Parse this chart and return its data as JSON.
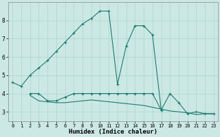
{
  "xlabel": "Humidex (Indice chaleur)",
  "bg_color": "#cce8e4",
  "line_color": "#1a7a6e",
  "grid_color": "#aad4cc",
  "xlim": [
    -0.5,
    23.5
  ],
  "ylim": [
    2.5,
    9.0
  ],
  "xticks": [
    0,
    1,
    2,
    3,
    4,
    5,
    6,
    7,
    8,
    9,
    10,
    11,
    12,
    13,
    14,
    15,
    16,
    17,
    18,
    19,
    20,
    21,
    22,
    23
  ],
  "yticks": [
    3,
    4,
    5,
    6,
    7,
    8
  ],
  "curve1_x": [
    0,
    1,
    2,
    3,
    4,
    5,
    6,
    7,
    8,
    9,
    10,
    11,
    12,
    13,
    14,
    15,
    16,
    17
  ],
  "curve1_y": [
    4.6,
    4.4,
    5.0,
    5.4,
    5.8,
    6.3,
    6.8,
    7.3,
    7.8,
    8.1,
    8.5,
    8.5,
    4.5,
    6.6,
    7.7,
    7.7,
    7.2,
    3.1
  ],
  "curve2_x": [
    2,
    3,
    4,
    5,
    6,
    7,
    8,
    9,
    10,
    11,
    12,
    13,
    14,
    15,
    16,
    17,
    18,
    19,
    20,
    21,
    22,
    23
  ],
  "curve2_y": [
    4.0,
    4.0,
    3.6,
    3.6,
    3.8,
    4.0,
    4.0,
    4.0,
    4.0,
    4.0,
    4.0,
    4.0,
    4.0,
    4.0,
    4.0,
    3.1,
    4.0,
    3.5,
    2.9,
    3.0,
    2.9,
    2.9
  ],
  "curve3_x": [
    2,
    3,
    4,
    5,
    6,
    7,
    8,
    9,
    10,
    11,
    12,
    13,
    14,
    15,
    16,
    17,
    18,
    19,
    20,
    21,
    22,
    23
  ],
  "curve3_y": [
    3.9,
    3.6,
    3.55,
    3.5,
    3.5,
    3.55,
    3.6,
    3.65,
    3.6,
    3.55,
    3.5,
    3.45,
    3.4,
    3.35,
    3.25,
    3.15,
    3.05,
    3.0,
    2.95,
    2.85,
    2.9,
    2.88
  ]
}
